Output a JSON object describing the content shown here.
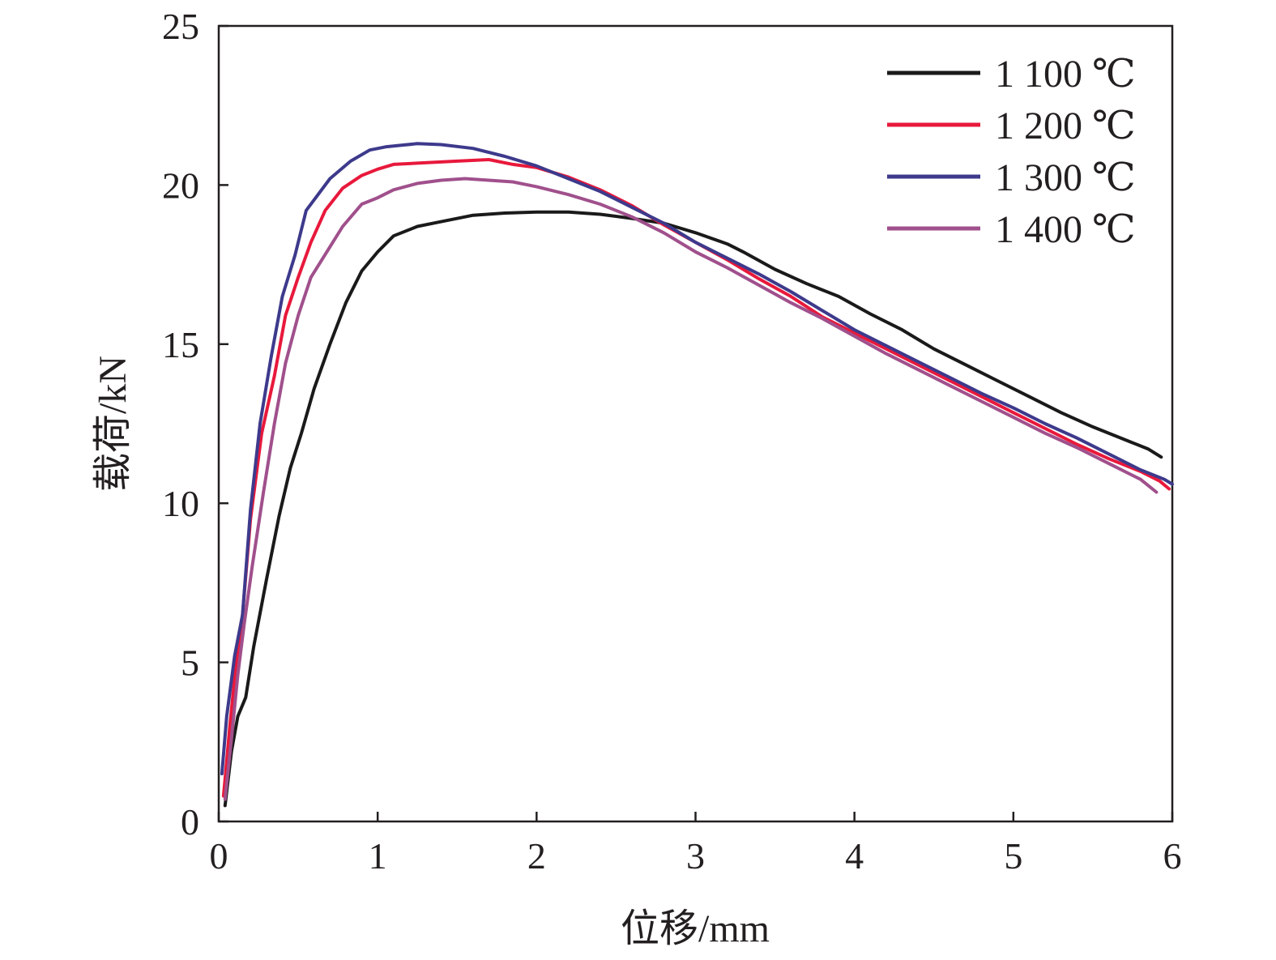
{
  "chart_data": {
    "type": "line",
    "title": "",
    "xlabel": "位移/mm",
    "ylabel": "载荷/kN",
    "xlim": [
      0,
      6
    ],
    "ylim": [
      0,
      25
    ],
    "xticks": [
      0,
      1,
      2,
      3,
      4,
      5,
      6
    ],
    "yticks": [
      0,
      5,
      10,
      15,
      20,
      25
    ],
    "grid": false,
    "legend_position": "top-right",
    "series": [
      {
        "name": "1 100 ℃",
        "color": "#1a1a1a",
        "x": [
          0.04,
          0.08,
          0.12,
          0.17,
          0.22,
          0.3,
          0.38,
          0.45,
          0.52,
          0.6,
          0.7,
          0.8,
          0.9,
          1.0,
          1.1,
          1.25,
          1.4,
          1.6,
          1.8,
          2.0,
          2.2,
          2.4,
          2.6,
          2.8,
          3.0,
          3.2,
          3.3,
          3.5,
          3.7,
          3.9,
          4.1,
          4.3,
          4.5,
          4.7,
          4.9,
          5.1,
          5.3,
          5.5,
          5.7,
          5.85,
          5.93
        ],
        "y": [
          0.5,
          2.2,
          3.3,
          3.9,
          5.5,
          7.6,
          9.6,
          11.1,
          12.2,
          13.6,
          15.0,
          16.3,
          17.3,
          17.9,
          18.4,
          18.7,
          18.85,
          19.05,
          19.12,
          19.15,
          19.15,
          19.08,
          18.95,
          18.8,
          18.5,
          18.15,
          17.9,
          17.35,
          16.9,
          16.5,
          15.95,
          15.45,
          14.85,
          14.35,
          13.85,
          13.35,
          12.85,
          12.4,
          12.0,
          11.7,
          11.45
        ]
      },
      {
        "name": "1 200 ℃",
        "color": "#e8193c",
        "x": [
          0.03,
          0.07,
          0.11,
          0.15,
          0.2,
          0.27,
          0.35,
          0.42,
          0.5,
          0.58,
          0.67,
          0.78,
          0.9,
          1.0,
          1.1,
          1.3,
          1.5,
          1.7,
          1.85,
          2.0,
          2.2,
          2.4,
          2.6,
          2.8,
          3.0,
          3.2,
          3.4,
          3.6,
          3.8,
          4.0,
          4.2,
          4.4,
          4.6,
          4.8,
          5.0,
          5.2,
          5.4,
          5.6,
          5.8,
          5.92,
          5.98
        ],
        "y": [
          0.8,
          3.0,
          5.0,
          6.5,
          9.5,
          12.2,
          14.0,
          15.9,
          17.1,
          18.2,
          19.2,
          19.9,
          20.3,
          20.5,
          20.65,
          20.7,
          20.75,
          20.8,
          20.65,
          20.55,
          20.25,
          19.85,
          19.35,
          18.75,
          18.2,
          17.65,
          17.05,
          16.5,
          15.85,
          15.35,
          14.85,
          14.35,
          13.85,
          13.35,
          12.85,
          12.35,
          11.85,
          11.4,
          11.0,
          10.7,
          10.45
        ]
      },
      {
        "name": "1 300 ℃",
        "color": "#3d3a8c",
        "x": [
          0.02,
          0.05,
          0.1,
          0.15,
          0.2,
          0.26,
          0.33,
          0.4,
          0.48,
          0.55,
          0.7,
          0.83,
          0.95,
          1.05,
          1.15,
          1.25,
          1.4,
          1.6,
          1.8,
          2.0,
          2.2,
          2.4,
          2.6,
          2.8,
          3.0,
          3.2,
          3.4,
          3.6,
          3.8,
          4.0,
          4.2,
          4.4,
          4.6,
          4.8,
          5.0,
          5.2,
          5.4,
          5.6,
          5.8,
          5.95,
          6.0
        ],
        "y": [
          1.5,
          3.3,
          5.2,
          6.5,
          9.8,
          12.5,
          14.6,
          16.5,
          17.8,
          19.2,
          20.2,
          20.75,
          21.1,
          21.2,
          21.25,
          21.3,
          21.27,
          21.15,
          20.9,
          20.6,
          20.2,
          19.8,
          19.3,
          18.8,
          18.2,
          17.7,
          17.2,
          16.65,
          16.05,
          15.45,
          14.95,
          14.45,
          13.95,
          13.45,
          13.0,
          12.5,
          12.05,
          11.55,
          11.05,
          10.75,
          10.6
        ]
      },
      {
        "name": "1 400 ℃",
        "color": "#a0508c",
        "x": [
          0.04,
          0.08,
          0.12,
          0.16,
          0.21,
          0.28,
          0.35,
          0.42,
          0.5,
          0.58,
          0.68,
          0.78,
          0.9,
          1.0,
          1.1,
          1.25,
          1.4,
          1.55,
          1.7,
          1.85,
          2.0,
          2.2,
          2.4,
          2.6,
          2.8,
          3.0,
          3.2,
          3.4,
          3.6,
          3.8,
          4.0,
          4.2,
          4.4,
          4.6,
          4.8,
          5.0,
          5.2,
          5.4,
          5.6,
          5.8,
          5.9
        ],
        "y": [
          0.7,
          2.6,
          4.6,
          6.2,
          8.0,
          10.3,
          12.5,
          14.4,
          15.9,
          17.1,
          17.9,
          18.7,
          19.4,
          19.6,
          19.85,
          20.05,
          20.15,
          20.2,
          20.15,
          20.1,
          19.95,
          19.7,
          19.4,
          19.0,
          18.5,
          17.9,
          17.4,
          16.85,
          16.3,
          15.8,
          15.25,
          14.7,
          14.2,
          13.7,
          13.2,
          12.7,
          12.2,
          11.75,
          11.25,
          10.75,
          10.35
        ]
      }
    ]
  }
}
